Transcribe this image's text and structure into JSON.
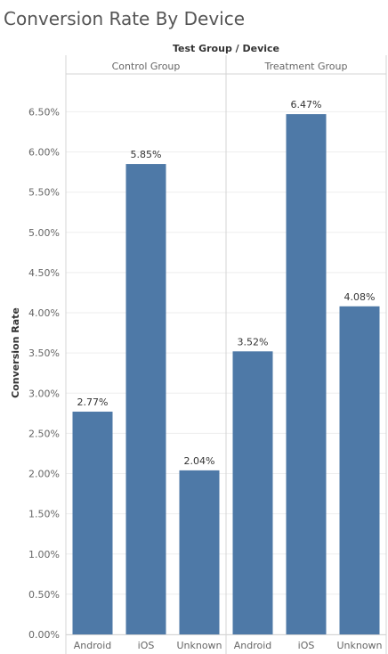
{
  "chart_data": {
    "type": "bar",
    "title": "Conversion Rate By Device",
    "column_header": "Test Group / Device",
    "ylabel": "Conversion Rate",
    "ylim": [
      0,
      6.87
    ],
    "y_ticks": [
      "0.00%",
      "0.50%",
      "1.00%",
      "1.50%",
      "2.00%",
      "2.50%",
      "3.00%",
      "3.50%",
      "4.00%",
      "4.50%",
      "5.00%",
      "5.50%",
      "6.00%",
      "6.50%"
    ],
    "y_tick_values": [
      0,
      0.5,
      1,
      1.5,
      2,
      2.5,
      3,
      3.5,
      4,
      4.5,
      5,
      5.5,
      6,
      6.5
    ],
    "groups": [
      {
        "name": "Control Group",
        "categories": [
          "Android",
          "iOS",
          "Unknown"
        ],
        "values": [
          2.77,
          5.85,
          2.04
        ],
        "labels": [
          "2.77%",
          "5.85%",
          "2.04%"
        ]
      },
      {
        "name": "Treatment Group",
        "categories": [
          "Android",
          "iOS",
          "Unknown"
        ],
        "values": [
          3.52,
          6.47,
          4.08
        ],
        "labels": [
          "3.52%",
          "6.47%",
          "4.08%"
        ]
      }
    ],
    "bar_color": "#4e79a7",
    "grid": true,
    "legend": "none"
  }
}
